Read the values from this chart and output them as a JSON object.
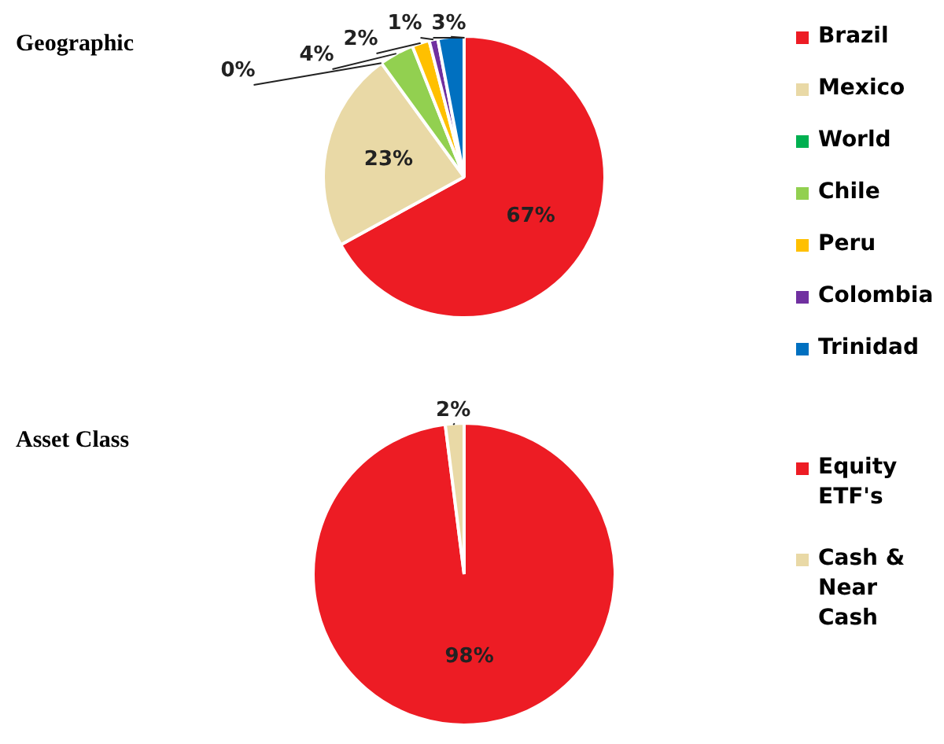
{
  "chart_data": [
    {
      "type": "pie",
      "title": "Geographic",
      "categories": [
        "Brazil",
        "Mexico",
        "World",
        "Chile",
        "Peru",
        "Colombia",
        "Trinidad"
      ],
      "values": [
        67,
        23,
        0,
        4,
        2,
        1,
        3
      ],
      "colors": [
        "#ed1c24",
        "#e9d9a6",
        "#00b050",
        "#92d050",
        "#ffc000",
        "#7030a0",
        "#0070c0"
      ],
      "value_labels": [
        "67%",
        "23%",
        "0%",
        "4%",
        "2%",
        "1%",
        "3%"
      ],
      "legend": "right"
    },
    {
      "type": "pie",
      "title": "Asset Class",
      "categories": [
        "Equity ETF's",
        "Cash & Near Cash"
      ],
      "values": [
        98,
        2
      ],
      "colors": [
        "#ed1c24",
        "#e9d9a6"
      ],
      "value_labels": [
        "98%",
        "2%"
      ],
      "legend": "right"
    }
  ]
}
